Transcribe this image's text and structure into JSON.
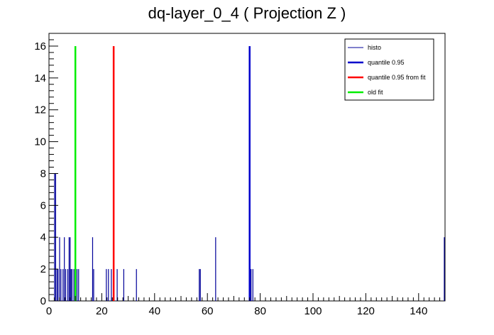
{
  "chart_data": {
    "type": "bar",
    "title": "dq-layer_0_4 ( Projection Z )",
    "xlabel": "",
    "ylabel": "",
    "xlim": [
      0,
      150
    ],
    "ylim": [
      0,
      16.8
    ],
    "grid": false,
    "legend_position": "top-right",
    "x_ticks": [
      "0",
      "20",
      "40",
      "60",
      "80",
      "100",
      "120",
      "140"
    ],
    "y_ticks": [
      "0",
      "2",
      "4",
      "6",
      "8",
      "10",
      "12",
      "14",
      "16"
    ],
    "bins": [
      {
        "x": 2.1,
        "y": 8
      },
      {
        "x": 2.5,
        "y": 8
      },
      {
        "x": 3.0,
        "y": 2
      },
      {
        "x": 3.4,
        "y": 2
      },
      {
        "x": 4.0,
        "y": 4
      },
      {
        "x": 4.5,
        "y": 2
      },
      {
        "x": 5.3,
        "y": 2
      },
      {
        "x": 5.8,
        "y": 4
      },
      {
        "x": 6.3,
        "y": 2
      },
      {
        "x": 7.1,
        "y": 2
      },
      {
        "x": 7.6,
        "y": 4
      },
      {
        "x": 8.0,
        "y": 4
      },
      {
        "x": 8.3,
        "y": 2
      },
      {
        "x": 8.7,
        "y": 2
      },
      {
        "x": 9.4,
        "y": 2
      },
      {
        "x": 10.6,
        "y": 2
      },
      {
        "x": 11.2,
        "y": 2
      },
      {
        "x": 16.5,
        "y": 4
      },
      {
        "x": 16.9,
        "y": 2
      },
      {
        "x": 21.7,
        "y": 2
      },
      {
        "x": 22.5,
        "y": 2
      },
      {
        "x": 23.6,
        "y": 2
      },
      {
        "x": 25.8,
        "y": 2
      },
      {
        "x": 28.3,
        "y": 2
      },
      {
        "x": 33.1,
        "y": 2
      },
      {
        "x": 56.9,
        "y": 2
      },
      {
        "x": 57.3,
        "y": 2
      },
      {
        "x": 63.1,
        "y": 4
      },
      {
        "x": 76.5,
        "y": 2
      },
      {
        "x": 77.2,
        "y": 2
      },
      {
        "x": 149.7,
        "y": 4
      }
    ],
    "lines": [
      {
        "name": "quantile 0.95",
        "x": 76.0,
        "y": 16,
        "color": "#0000cc"
      },
      {
        "name": "quantile 0.95 from fit",
        "x": 24.5,
        "y": 16,
        "color": "#ff0000"
      },
      {
        "name": "old fit",
        "x": 10.0,
        "y": 16,
        "color": "#00ee00"
      }
    ],
    "series": [
      {
        "name": "histo",
        "color": "#000099"
      },
      {
        "name": "quantile 0.95",
        "color": "#0000cc"
      },
      {
        "name": "quantile 0.95 from fit",
        "color": "#ff0000"
      },
      {
        "name": "old fit",
        "color": "#00ee00"
      }
    ]
  }
}
